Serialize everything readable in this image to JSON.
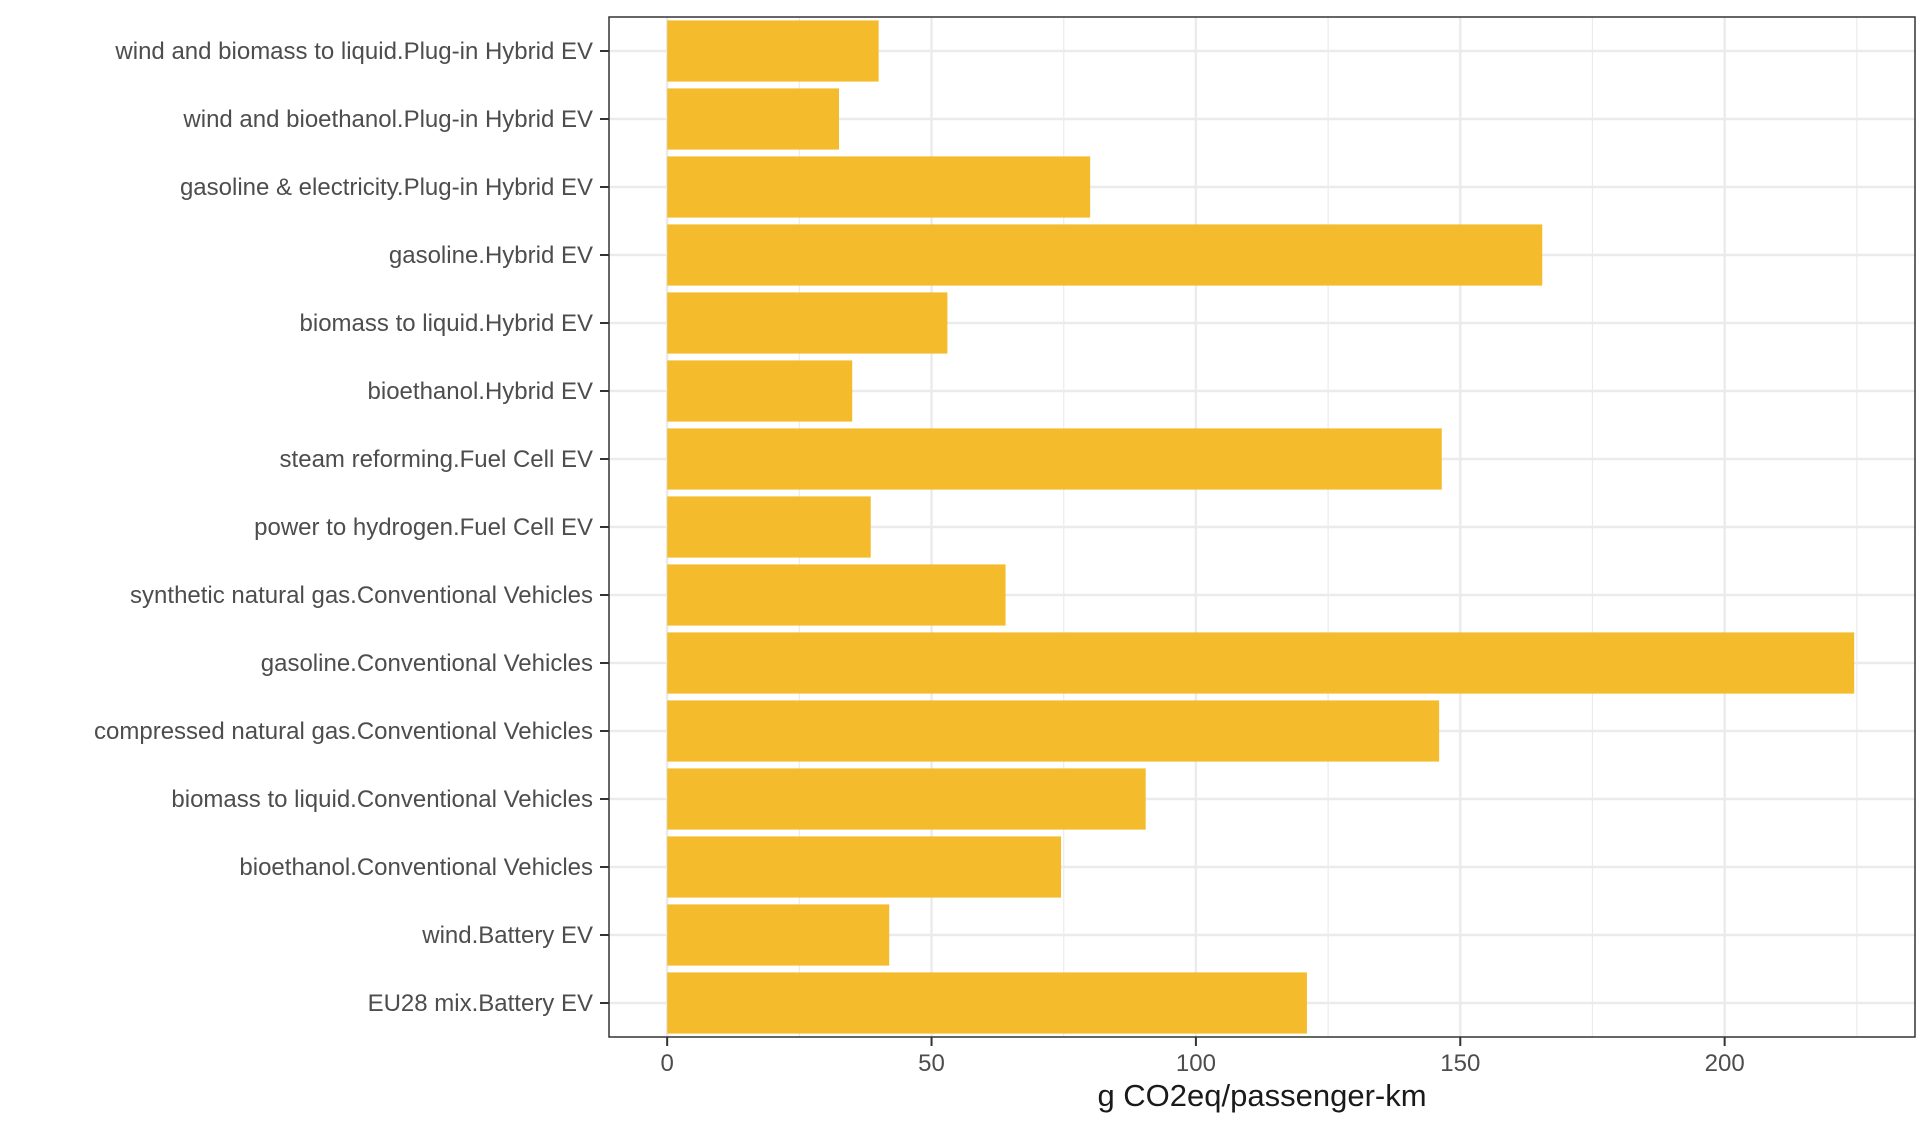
{
  "chart_data": {
    "type": "bar",
    "orientation": "horizontal",
    "xlabel": "g CO2eq/passenger-km",
    "ylabel": "",
    "xlim": [
      -11,
      236
    ],
    "xticks": [
      0,
      50,
      100,
      150,
      200
    ],
    "grid": true,
    "bar_color": "#F4BC2C",
    "categories": [
      "EU28 mix.Battery EV",
      "wind.Battery EV",
      "bioethanol.Conventional Vehicles",
      "biomass to liquid.Conventional Vehicles",
      "compressed natural gas.Conventional Vehicles",
      "gasoline.Conventional Vehicles",
      "synthetic natural gas.Conventional Vehicles",
      "power to hydrogen.Fuel Cell EV",
      "steam reforming.Fuel Cell EV",
      "bioethanol.Hybrid EV",
      "biomass to liquid.Hybrid EV",
      "gasoline.Hybrid EV",
      "gasoline & electricity.Plug-in Hybrid EV",
      "wind and bioethanol.Plug-in Hybrid EV",
      "wind and biomass to liquid.Plug-in Hybrid EV"
    ],
    "values": [
      121,
      42,
      74.5,
      90.5,
      146,
      224.5,
      64,
      38.5,
      146.5,
      35,
      53,
      165.5,
      80,
      32.5,
      40
    ]
  }
}
